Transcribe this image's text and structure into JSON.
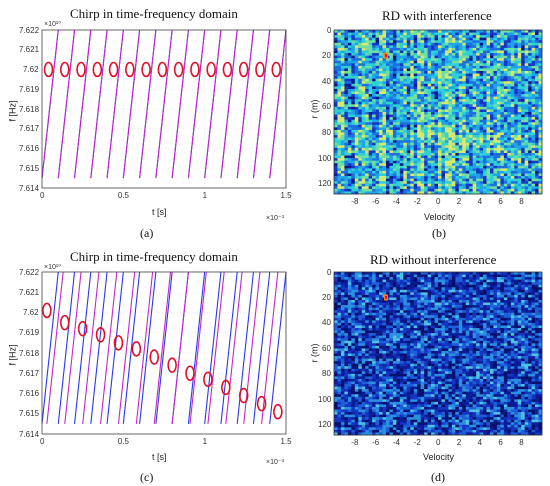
{
  "chart_data": [
    {
      "id": "a",
      "type": "line",
      "title": "Chirp in time-frequency domain",
      "caption": "(a)",
      "xlabel": "t [s]",
      "ylabel": "f [Hz]",
      "x_exponent": "×10⁻³",
      "y_exponent": "×10¹⁰",
      "xlim": [
        0,
        1.5
      ],
      "ylim": [
        7.614,
        7.622
      ],
      "x_ticks": [
        "0",
        "0.5",
        "1",
        "1.5"
      ],
      "y_ticks": [
        "7.614",
        "7.615",
        "7.616",
        "7.617",
        "7.618",
        "7.619",
        "7.62",
        "7.621",
        "7.622"
      ],
      "chirp_start_freq": 7.6145,
      "chirp_end_freq": 7.622,
      "chirp_duration": 0.1,
      "series": [
        {
          "name": "",
          "color": "#2a36e8",
          "starts": [
            0,
            0.1,
            0.2,
            0.3,
            0.4,
            0.5,
            0.6,
            0.7,
            0.8,
            0.9,
            1.0,
            1.1,
            1.2,
            1.3,
            1.4
          ]
        },
        {
          "name": "",
          "color": "#c126c8",
          "starts": [
            0,
            0.1,
            0.2,
            0.3,
            0.4,
            0.5,
            0.6,
            0.7,
            0.8,
            0.9,
            1.0,
            1.1,
            1.2,
            1.3,
            1.4
          ]
        }
      ],
      "markers": [
        {
          "t": 0.04,
          "f": 7.62
        },
        {
          "t": 0.14,
          "f": 7.62
        },
        {
          "t": 0.24,
          "f": 7.62
        },
        {
          "t": 0.34,
          "f": 7.62
        },
        {
          "t": 0.44,
          "f": 7.62
        },
        {
          "t": 0.54,
          "f": 7.62
        },
        {
          "t": 0.64,
          "f": 7.62
        },
        {
          "t": 0.74,
          "f": 7.62
        },
        {
          "t": 0.84,
          "f": 7.62
        },
        {
          "t": 0.94,
          "f": 7.62
        },
        {
          "t": 1.04,
          "f": 7.62
        },
        {
          "t": 1.14,
          "f": 7.62
        },
        {
          "t": 1.24,
          "f": 7.62
        },
        {
          "t": 1.34,
          "f": 7.62
        },
        {
          "t": 1.44,
          "f": 7.62
        }
      ],
      "marker_color": "#e0102a",
      "grid": true
    },
    {
      "id": "b",
      "type": "heatmap",
      "title": "RD with interference",
      "caption": "(b)",
      "xlabel": "Velocity",
      "ylabel": "r (m)",
      "xlim": [
        -10,
        10
      ],
      "ylim": [
        128,
        0
      ],
      "x_ticks": [
        "-8",
        "-6",
        "-4",
        "-2",
        "0",
        "2",
        "4",
        "6",
        "8"
      ],
      "y_ticks": [
        "0",
        "20",
        "40",
        "60",
        "80",
        "100",
        "120"
      ],
      "target": {
        "velocity": -5,
        "range": 20
      },
      "colors": [
        "#0b1a8c",
        "#1537c7",
        "#1d6fe0",
        "#1fa4e8",
        "#2fd0d6",
        "#6fe0a0",
        "#d8e86a"
      ]
    },
    {
      "id": "c",
      "type": "line",
      "title": "Chirp in time-frequency domain",
      "caption": "(c)",
      "xlabel": "t [s]",
      "ylabel": "f [Hz]",
      "x_exponent": "×10⁻³",
      "y_exponent": "×10¹⁰",
      "xlim": [
        0,
        1.5
      ],
      "ylim": [
        7.614,
        7.622
      ],
      "x_ticks": [
        "0",
        "0.5",
        "1",
        "1.5"
      ],
      "y_ticks": [
        "7.614",
        "7.615",
        "7.616",
        "7.617",
        "7.618",
        "7.619",
        "7.62",
        "7.621",
        "7.622"
      ],
      "chirp_start_freq": 7.6145,
      "chirp_end_freq": 7.622,
      "chirp_duration": 0.1,
      "series": [
        {
          "name": "",
          "color": "#2a36e8",
          "starts": [
            0,
            0.1,
            0.2,
            0.3,
            0.4,
            0.5,
            0.6,
            0.7,
            0.8,
            0.9,
            1.0,
            1.1,
            1.2,
            1.3,
            1.4
          ]
        },
        {
          "name": "",
          "color": "#c126c8",
          "starts": [
            0.03,
            0.14,
            0.25,
            0.36,
            0.47,
            0.58,
            0.69,
            0.8,
            0.91,
            1.02,
            1.13,
            1.24,
            1.35
          ]
        }
      ],
      "markers": [
        {
          "t": 0.03,
          "f": 7.6201
        },
        {
          "t": 0.14,
          "f": 7.6195
        },
        {
          "t": 0.25,
          "f": 7.6192
        },
        {
          "t": 0.36,
          "f": 7.6189
        },
        {
          "t": 0.47,
          "f": 7.6185
        },
        {
          "t": 0.58,
          "f": 7.6182
        },
        {
          "t": 0.69,
          "f": 7.6178
        },
        {
          "t": 0.8,
          "f": 7.6174
        },
        {
          "t": 0.91,
          "f": 7.617
        },
        {
          "t": 1.02,
          "f": 7.6167
        },
        {
          "t": 1.13,
          "f": 7.6163
        },
        {
          "t": 1.24,
          "f": 7.6159
        },
        {
          "t": 1.35,
          "f": 7.6155
        },
        {
          "t": 1.45,
          "f": 7.6151
        }
      ],
      "marker_color": "#e0102a",
      "grid": true
    },
    {
      "id": "d",
      "type": "heatmap",
      "title": "RD without interference",
      "caption": "(d)",
      "xlabel": "Velocity",
      "ylabel": "r (m)",
      "xlim": [
        -10,
        10
      ],
      "ylim": [
        128,
        0
      ],
      "x_ticks": [
        "-8",
        "-6",
        "-4",
        "-2",
        "0",
        "2",
        "4",
        "6",
        "8"
      ],
      "y_ticks": [
        "0",
        "20",
        "40",
        "60",
        "80",
        "100",
        "120"
      ],
      "target": {
        "velocity": -5,
        "range": 20
      },
      "colors": [
        "#07106e",
        "#0b1d9a",
        "#1435c2",
        "#1d5fd8",
        "#2a8fe0",
        "#4fc0e6"
      ]
    }
  ]
}
